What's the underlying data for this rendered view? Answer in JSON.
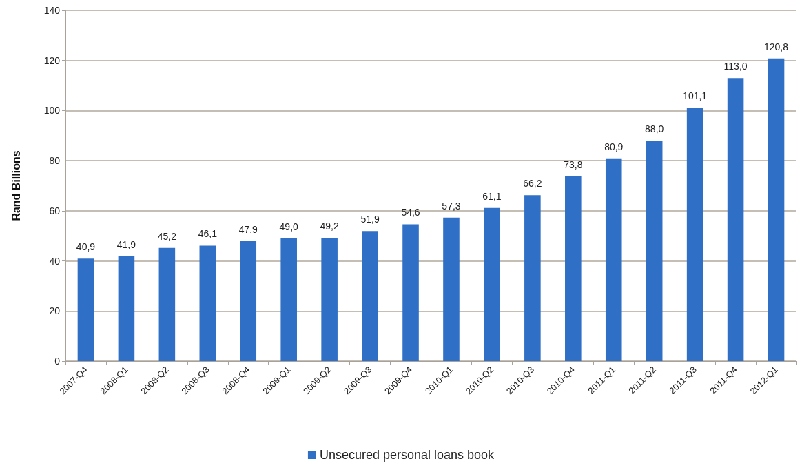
{
  "chart_data": {
    "type": "bar",
    "ylabel": "Rand Billions",
    "categories": [
      "2007-Q4",
      "2008-Q1",
      "2008-Q2",
      "2008-Q3",
      "2008-Q4",
      "2009-Q1",
      "2009-Q2",
      "2009-Q3",
      "2009-Q4",
      "2010-Q1",
      "2010-Q2",
      "2010-Q3",
      "2010-Q4",
      "2011-Q1",
      "2011-Q2",
      "2011-Q3",
      "2011-Q4",
      "2012-Q1"
    ],
    "series": [
      {
        "name": "Unsecured personal loans book",
        "color": "#2f6fc6",
        "values": [
          40.9,
          41.9,
          45.2,
          46.1,
          47.9,
          49.0,
          49.2,
          51.9,
          54.6,
          57.3,
          61.1,
          66.2,
          73.8,
          80.9,
          88.0,
          101.1,
          113.0,
          120.8
        ],
        "value_labels": [
          "40,9",
          "41,9",
          "45,2",
          "46,1",
          "47,9",
          "49,0",
          "49,2",
          "51,9",
          "54,6",
          "57,3",
          "61,1",
          "66,2",
          "73,8",
          "80,9",
          "88,0",
          "101,1",
          "113,0",
          "120,8"
        ]
      }
    ],
    "ylim": [
      0,
      140
    ],
    "yticks": [
      0,
      20,
      40,
      60,
      80,
      100,
      120,
      140
    ],
    "grid": "y",
    "legend": "bottom"
  }
}
